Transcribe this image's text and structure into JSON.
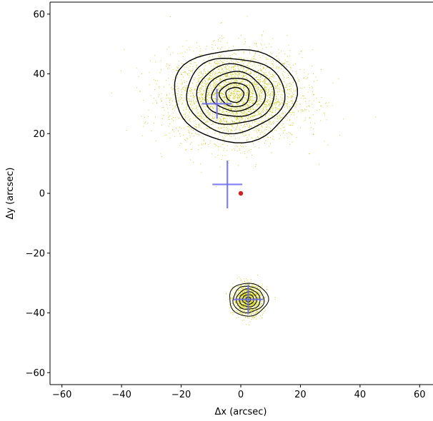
{
  "chart_data": {
    "type": "scatter",
    "title": "",
    "xlabel": "Δx (arcsec)",
    "ylabel": "Δy (arcsec)",
    "xlim": [
      -64,
      64
    ],
    "ylim": [
      -64,
      64
    ],
    "xticks": [
      -60,
      -40,
      -20,
      0,
      20,
      40,
      60
    ],
    "yticks": [
      -60,
      -40,
      -20,
      0,
      20,
      40,
      60
    ],
    "xtick_labels": [
      "−60",
      "−40",
      "−20",
      "0",
      "20",
      "40",
      "60"
    ],
    "ytick_labels": [
      "−60",
      "−40",
      "−20",
      "0",
      "20",
      "40",
      "60"
    ],
    "grid": false,
    "legend": "none",
    "colors": {
      "points": "#c8c800",
      "contours": "#000000",
      "crosses": "#6b6bf0",
      "origin_dot": "#cc2222"
    },
    "point_clouds": [
      {
        "center": [
          -2.0,
          32.5
        ],
        "sigma": [
          11.0,
          7.5
        ],
        "count": 3500
      },
      {
        "center": [
          2.5,
          -35.5
        ],
        "sigma": [
          2.5,
          2.5
        ],
        "count": 1400
      }
    ],
    "contours": [
      {
        "center": [
          -2.0,
          33.0
        ],
        "radii": [
          [
            20.5,
            15.5
          ],
          [
            16.5,
            12.5
          ],
          [
            13.0,
            10.0
          ],
          [
            10.0,
            7.5
          ],
          [
            7.5,
            5.5
          ],
          [
            5.0,
            4.0
          ],
          [
            3.0,
            2.5
          ]
        ]
      },
      {
        "center": [
          2.5,
          -35.5
        ],
        "radii": [
          [
            6.5,
            5.5
          ],
          [
            5.2,
            4.4
          ],
          [
            4.0,
            3.4
          ],
          [
            2.9,
            2.5
          ],
          [
            1.9,
            1.6
          ],
          [
            0.8,
            0.8
          ]
        ]
      }
    ],
    "crosses": [
      {
        "x": -8.0,
        "y": 30.0,
        "half_width": 5.0,
        "half_height": 5.0
      },
      {
        "x": -4.5,
        "y": 3.0,
        "half_width": 5.0,
        "half_height": 8.0
      },
      {
        "x": 2.5,
        "y": -35.5,
        "half_width": 5.0,
        "half_height": 5.0
      }
    ],
    "origin_marker": {
      "x": 0,
      "y": 0
    }
  }
}
